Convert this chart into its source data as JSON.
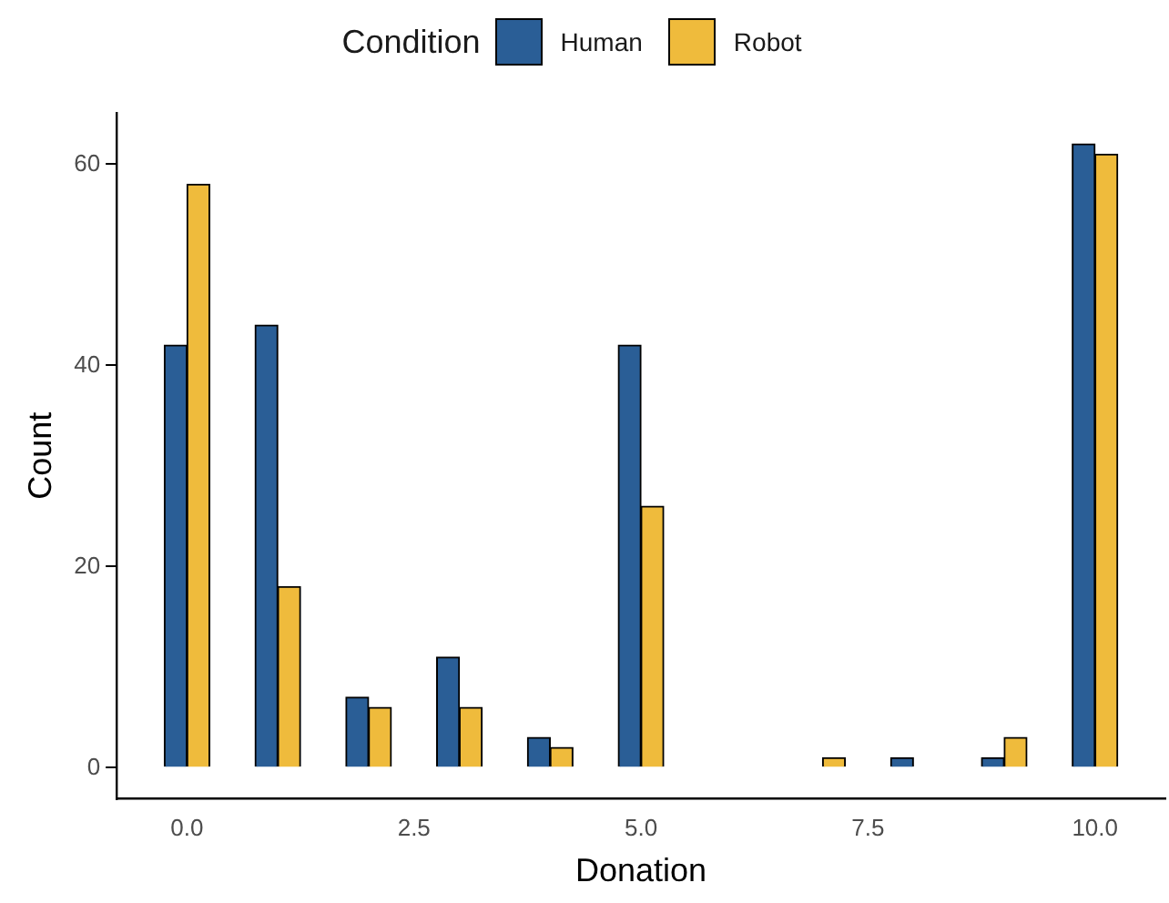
{
  "chart_data": {
    "type": "histogram",
    "xlabel": "Donation",
    "ylabel": "Count",
    "legend_title": "Condition",
    "legend": "top",
    "bins": [
      -0.25,
      0.25,
      0.75,
      1.25,
      1.75,
      2.25,
      2.75,
      3.25,
      3.75,
      4.25,
      4.75,
      5.25,
      5.75,
      6.25,
      6.75,
      7.25,
      7.75,
      8.25,
      8.75,
      9.25,
      9.75,
      10.25
    ],
    "series": [
      {
        "name": "Human",
        "color": "#2a5e96",
        "values": [
          42,
          0,
          44,
          0,
          7,
          0,
          11,
          0,
          3,
          0,
          42,
          0,
          0,
          0,
          0,
          0,
          1,
          0,
          1,
          0,
          62
        ]
      },
      {
        "name": "Robot",
        "color": "#efbb3c",
        "values": [
          58,
          0,
          18,
          0,
          6,
          0,
          6,
          0,
          2,
          0,
          26,
          0,
          0,
          0,
          1,
          0,
          0,
          0,
          3,
          0,
          61
        ]
      }
    ],
    "xlim": [
      -0.775,
      10.775
    ],
    "xticks": [
      {
        "value": 0,
        "label": "0.0"
      },
      2.5,
      {
        "value": 5,
        "label": "5.0"
      },
      7.5,
      {
        "value": 10,
        "label": "10.0"
      }
    ],
    "ylim": [
      -3.1,
      65.1
    ],
    "yticks": [
      0,
      20,
      40,
      60
    ],
    "grid": false
  }
}
